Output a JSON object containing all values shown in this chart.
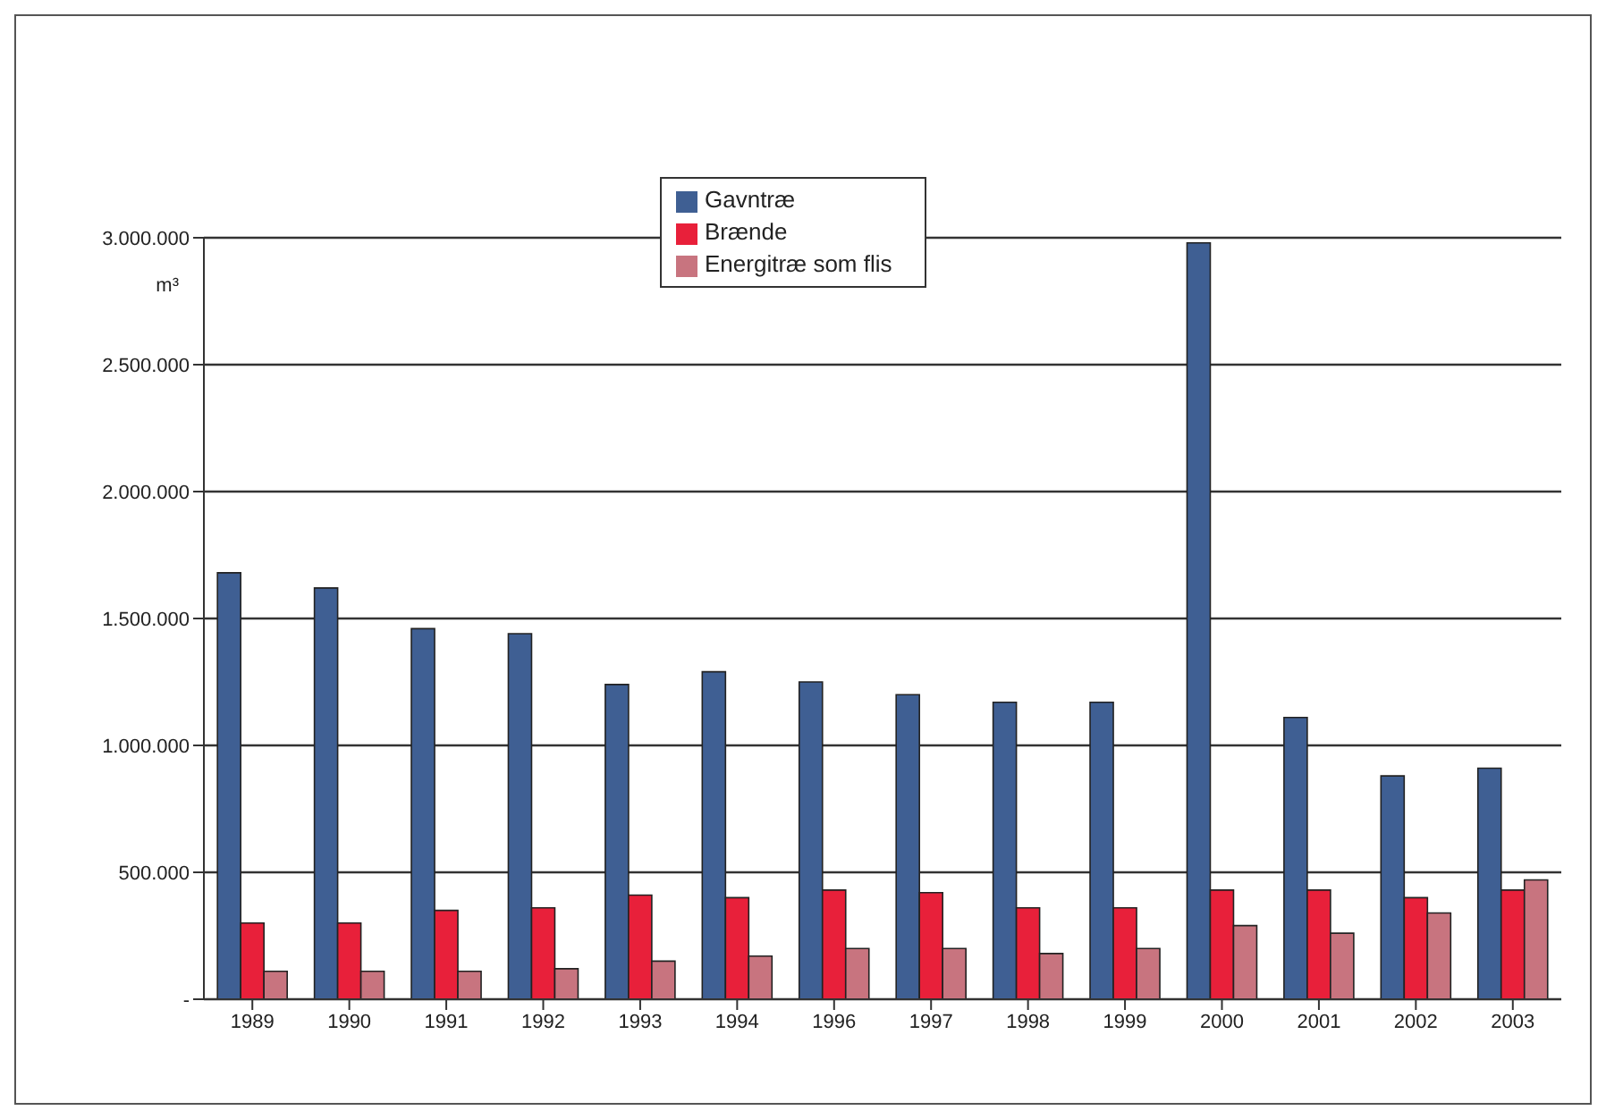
{
  "chart_data": {
    "type": "bar",
    "ylabel": "m³",
    "categories": [
      "1989",
      "1990",
      "1991",
      "1992",
      "1993",
      "1994",
      "1996",
      "1997",
      "1998",
      "1999",
      "2000",
      "2001",
      "2002",
      "2003"
    ],
    "series": [
      {
        "name": "Gavntræ",
        "color": "#3f5f93",
        "values": [
          1680000,
          1620000,
          1460000,
          1440000,
          1240000,
          1290000,
          1250000,
          1200000,
          1170000,
          1170000,
          2980000,
          1110000,
          880000,
          910000
        ]
      },
      {
        "name": "Brænde",
        "color": "#e8203a",
        "values": [
          300000,
          300000,
          350000,
          360000,
          410000,
          400000,
          430000,
          420000,
          360000,
          360000,
          430000,
          430000,
          400000,
          430000
        ]
      },
      {
        "name": "Energitræ som flis",
        "color": "#c8747f",
        "values": [
          110000,
          110000,
          110000,
          120000,
          150000,
          170000,
          200000,
          200000,
          180000,
          200000,
          290000,
          260000,
          340000,
          470000
        ]
      }
    ],
    "ylim": [
      0,
      3000000
    ],
    "yticks": [
      {
        "value": 0,
        "label": "-"
      },
      {
        "value": 500000,
        "label": "500.000"
      },
      {
        "value": 1000000,
        "label": "1.000.000"
      },
      {
        "value": 1500000,
        "label": "1.500.000"
      },
      {
        "value": 2000000,
        "label": "2.000.000"
      },
      {
        "value": 2500000,
        "label": "2.500.000"
      },
      {
        "value": 3000000,
        "label": "3.000.000"
      }
    ],
    "grid": "y",
    "legend": "top"
  }
}
